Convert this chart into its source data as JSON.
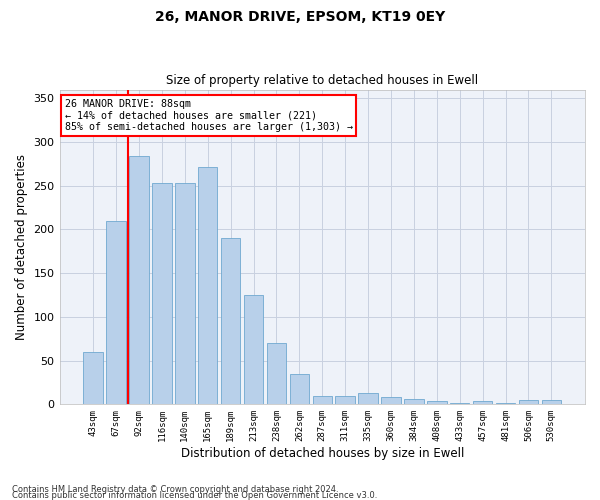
{
  "title1": "26, MANOR DRIVE, EPSOM, KT19 0EY",
  "title2": "Size of property relative to detached houses in Ewell",
  "xlabel": "Distribution of detached houses by size in Ewell",
  "ylabel": "Number of detached properties",
  "categories": [
    "43sqm",
    "67sqm",
    "92sqm",
    "116sqm",
    "140sqm",
    "165sqm",
    "189sqm",
    "213sqm",
    "238sqm",
    "262sqm",
    "287sqm",
    "311sqm",
    "335sqm",
    "360sqm",
    "384sqm",
    "408sqm",
    "433sqm",
    "457sqm",
    "481sqm",
    "506sqm",
    "530sqm"
  ],
  "values": [
    60,
    210,
    284,
    253,
    253,
    272,
    190,
    125,
    70,
    35,
    10,
    10,
    13,
    8,
    6,
    4,
    2,
    4,
    2,
    5,
    5
  ],
  "bar_color": "#b8d0ea",
  "bar_edge_color": "#6fa8d0",
  "vline_x": 1.5,
  "vline_color": "red",
  "annotation_title": "26 MANOR DRIVE: 88sqm",
  "annotation_line1": "← 14% of detached houses are smaller (221)",
  "annotation_line2": "85% of semi-detached houses are larger (1,303) →",
  "box_facecolor": "white",
  "box_edgecolor": "red",
  "ylim": [
    0,
    360
  ],
  "yticks": [
    0,
    50,
    100,
    150,
    200,
    250,
    300,
    350
  ],
  "footnote1": "Contains HM Land Registry data © Crown copyright and database right 2024.",
  "footnote2": "Contains public sector information licensed under the Open Government Licence v3.0.",
  "bg_color": "#eef2f9",
  "grid_color": "#c8d0e0"
}
